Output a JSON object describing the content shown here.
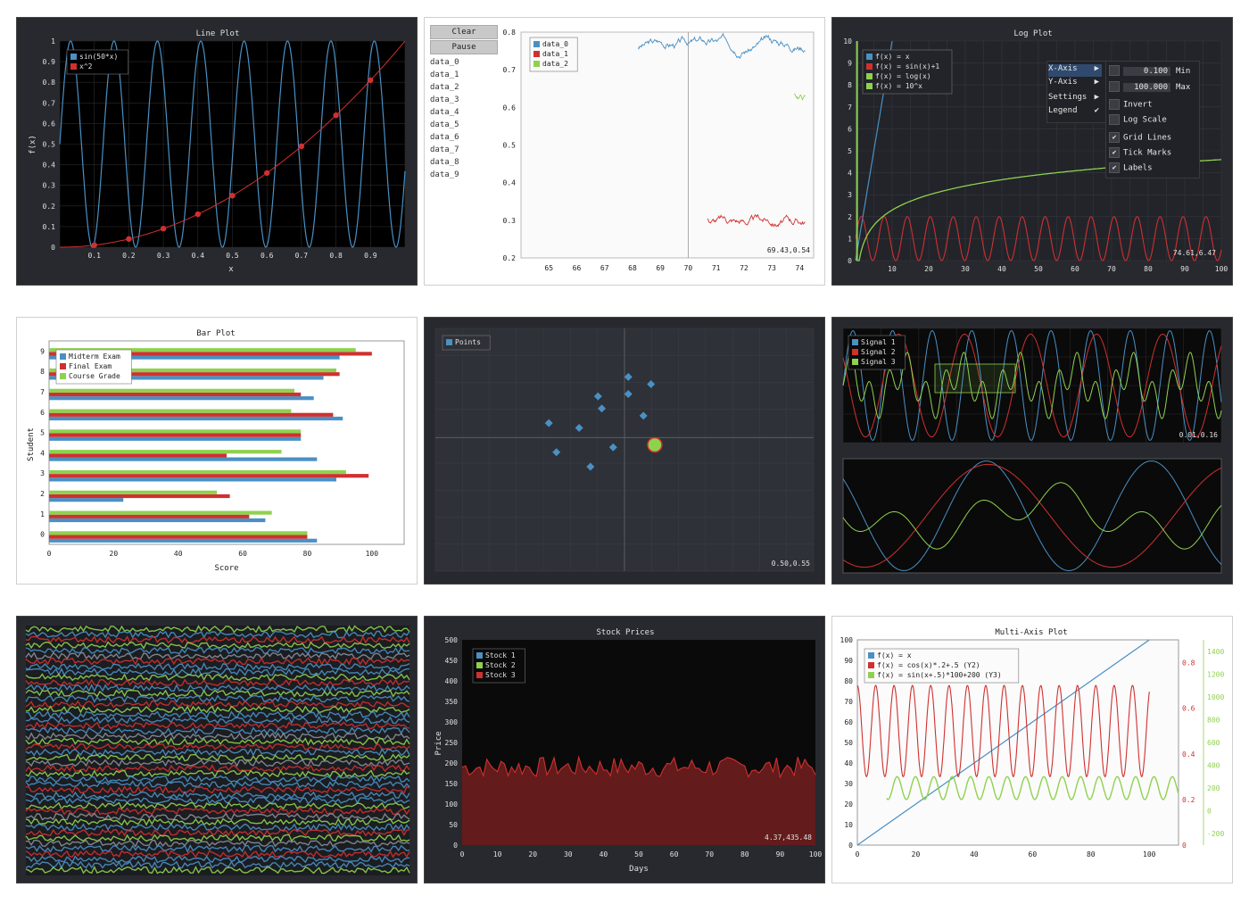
{
  "colors": {
    "blue": "#4a90c4",
    "red": "#d03030",
    "green": "#8fd14f",
    "darkbg": "#27292e",
    "plotbg": "#0d0d0d",
    "grid": "#3c3f45",
    "text": "#e0e0e0",
    "lighttext": "#222222"
  },
  "panels": {
    "line_plot": {
      "title": "Line Plot",
      "xlabel": "x",
      "ylabel": "f(x)"
    },
    "realtime": {
      "buttons": [
        "Clear",
        "Pause"
      ],
      "items": [
        "data_0",
        "data_1",
        "data_2",
        "data_3",
        "data_4",
        "data_5",
        "data_6",
        "data_7",
        "data_8",
        "data_9"
      ],
      "legend": [
        "data_0",
        "data_1",
        "data_2"
      ],
      "coords": "69.43,0.54"
    },
    "log_plot": {
      "title": "Log Plot",
      "coords": "74.61,6.47",
      "menu": {
        "items": [
          "X-Axis",
          "Y-Axis",
          "Settings",
          "Legend"
        ],
        "min_value": "0.100",
        "max_value": "100.000",
        "min_label": "Min",
        "max_label": "Max",
        "options": [
          "Invert",
          "Log Scale",
          "Grid Lines",
          "Tick Marks",
          "Labels"
        ]
      }
    },
    "bar_plot": {
      "title": "Bar Plot",
      "xlabel": "Score",
      "ylabel": "Student"
    },
    "points": {
      "legend": [
        "Points"
      ],
      "coords": "0.50,0.55"
    },
    "signals": {
      "legend": [
        "Signal 1",
        "Signal 2",
        "Signal 3"
      ],
      "coords": "0.01,0.16"
    },
    "heatmap": {},
    "stock": {
      "title": "Stock Prices",
      "xlabel": "Days",
      "ylabel": "Price",
      "legend": [
        "Stock 1",
        "Stock 2",
        "Stock 3"
      ],
      "coords": "4.37,435.48"
    },
    "multi_axis": {
      "title": "Multi-Axis Plot",
      "legend": [
        "f(x) = x",
        "f(x) = cos(x)*.2+.5 (Y2)",
        "f(x) = sin(x+.5)*100+200 (Y3)"
      ]
    }
  },
  "chart_data": [
    {
      "type": "line",
      "title": "Line Plot",
      "xlabel": "x",
      "ylabel": "f(x)",
      "xlim": [
        0,
        1
      ],
      "ylim": [
        0,
        1
      ],
      "x_ticks": [
        "0.1",
        "0.2",
        "0.3",
        "0.4",
        "0.5",
        "0.6",
        "0.7",
        "0.8",
        "0.9"
      ],
      "y_ticks": [
        "0",
        "0.1",
        "0.2",
        "0.3",
        "0.4",
        "0.5",
        "0.6",
        "0.7",
        "0.8",
        "0.9",
        "1"
      ],
      "series": [
        {
          "name": "sin(50*x)",
          "formula": "0.5+0.5*sin(50*x)",
          "color": "#4a90c4"
        },
        {
          "name": "x^2",
          "x": [
            0.1,
            0.2,
            0.3,
            0.4,
            0.5,
            0.6,
            0.7,
            0.8,
            0.9
          ],
          "y": [
            0.01,
            0.04,
            0.09,
            0.16,
            0.25,
            0.36,
            0.49,
            0.64,
            0.81
          ],
          "color": "#d03030"
        }
      ]
    },
    {
      "type": "line",
      "xlim": [
        64,
        74.5
      ],
      "ylim": [
        0.2,
        0.8
      ],
      "x_ticks": [
        "65",
        "66",
        "67",
        "68",
        "69",
        "70",
        "71",
        "72",
        "73",
        "74"
      ],
      "y_ticks": [
        "0.2",
        "0.3",
        "0.4",
        "0.5",
        "0.6",
        "0.7",
        "0.8"
      ],
      "series": [
        {
          "name": "data_0",
          "x_range": [
            68.2,
            74.2
          ],
          "level": 0.76,
          "color": "#4a90c4"
        },
        {
          "name": "data_1",
          "x_range": [
            70.7,
            74.2
          ],
          "level": 0.3,
          "color": "#d03030"
        },
        {
          "name": "data_2",
          "x_range": [
            73.8,
            74.2
          ],
          "level": 0.63,
          "color": "#8fd14f"
        }
      ]
    },
    {
      "type": "line",
      "title": "Log Plot",
      "xlim": [
        0,
        100
      ],
      "ylim": [
        0,
        10
      ],
      "x_ticks": [
        "10",
        "20",
        "30",
        "40",
        "50",
        "60",
        "70",
        "80",
        "90",
        "100"
      ],
      "y_ticks": [
        "0",
        "1",
        "2",
        "3",
        "4",
        "5",
        "6",
        "7",
        "8",
        "9",
        "10"
      ],
      "series": [
        {
          "name": "f(x) = x",
          "color": "#4a90c4"
        },
        {
          "name": "f(x) = sin(x)+1",
          "color": "#d03030"
        },
        {
          "name": "f(x) = log(x)",
          "color": "#8fd14f"
        },
        {
          "name": "f(x) = 10^x",
          "color": "#8fd14f"
        }
      ]
    },
    {
      "type": "bar",
      "title": "Bar Plot",
      "xlabel": "Score",
      "ylabel": "Student",
      "orientation": "horizontal",
      "xlim": [
        0,
        110
      ],
      "categories": [
        "0",
        "1",
        "2",
        "3",
        "4",
        "5",
        "6",
        "7",
        "8",
        "9"
      ],
      "x_ticks": [
        "0",
        "20",
        "40",
        "60",
        "80",
        "100"
      ],
      "series": [
        {
          "name": "Midterm Exam",
          "values": [
            83,
            67,
            23,
            89,
            83,
            78,
            91,
            82,
            85,
            90
          ],
          "color": "#4a90c4"
        },
        {
          "name": "Final Exam",
          "values": [
            80,
            62,
            56,
            99,
            55,
            78,
            88,
            78,
            90,
            100
          ],
          "color": "#d03030"
        },
        {
          "name": "Course Grade",
          "values": [
            80,
            69,
            52,
            92,
            72,
            78,
            75,
            76,
            89,
            95
          ],
          "color": "#8fd14f"
        }
      ]
    },
    {
      "type": "scatter",
      "xlim": [
        0,
        1
      ],
      "ylim": [
        0,
        1
      ],
      "series": [
        {
          "name": "Points",
          "x": [
            0.3,
            0.43,
            0.51,
            0.44,
            0.38,
            0.32,
            0.51,
            0.57,
            0.55,
            0.47,
            0.41,
            0.58
          ],
          "y": [
            0.61,
            0.72,
            0.73,
            0.67,
            0.59,
            0.49,
            0.8,
            0.77,
            0.64,
            0.51,
            0.43,
            0.52
          ],
          "color": "#4a90c4"
        }
      ]
    },
    {
      "type": "line",
      "series": [
        {
          "name": "Signal 1",
          "color": "#4a90c4"
        },
        {
          "name": "Signal 2",
          "color": "#d03030"
        },
        {
          "name": "Signal 3",
          "color": "#8fd14f"
        }
      ]
    },
    {
      "type": "heatmap"
    },
    {
      "type": "area",
      "title": "Stock Prices",
      "xlabel": "Days",
      "ylabel": "Price",
      "xlim": [
        0,
        100
      ],
      "ylim": [
        0,
        500
      ],
      "x_ticks": [
        "0",
        "10",
        "20",
        "30",
        "40",
        "50",
        "60",
        "70",
        "80",
        "90",
        "100"
      ],
      "y_ticks": [
        "0",
        "50",
        "100",
        "150",
        "200",
        "250",
        "300",
        "350",
        "400",
        "450",
        "500"
      ],
      "series": [
        {
          "name": "Stock 1",
          "color": "#4a90c4"
        },
        {
          "name": "Stock 2",
          "color": "#8fd14f"
        },
        {
          "name": "Stock 3",
          "color": "#d03030",
          "mean": 190,
          "amp": 25
        }
      ]
    },
    {
      "type": "line",
      "title": "Multi-Axis Plot",
      "xlim": [
        0,
        110
      ],
      "ylim": [
        0,
        100
      ],
      "x_ticks": [
        "0",
        "20",
        "40",
        "60",
        "80",
        "100"
      ],
      "y_ticks": [
        "0",
        "10",
        "20",
        "30",
        "40",
        "50",
        "60",
        "70",
        "80",
        "90",
        "100"
      ],
      "y2_ticks": [
        "0",
        "0.2",
        "0.4",
        "0.6",
        "0.8"
      ],
      "y3_ticks": [
        "-200",
        "0",
        "200",
        "400",
        "600",
        "800",
        "1000",
        "1200",
        "1400"
      ],
      "series": [
        {
          "name": "f(x) = x",
          "color": "#4a90c4"
        },
        {
          "name": "f(x) = cos(x)*.2+.5 (Y2)",
          "color": "#d03030"
        },
        {
          "name": "f(x) = sin(x+.5)*100+200 (Y3)",
          "color": "#8fd14f"
        }
      ]
    }
  ]
}
